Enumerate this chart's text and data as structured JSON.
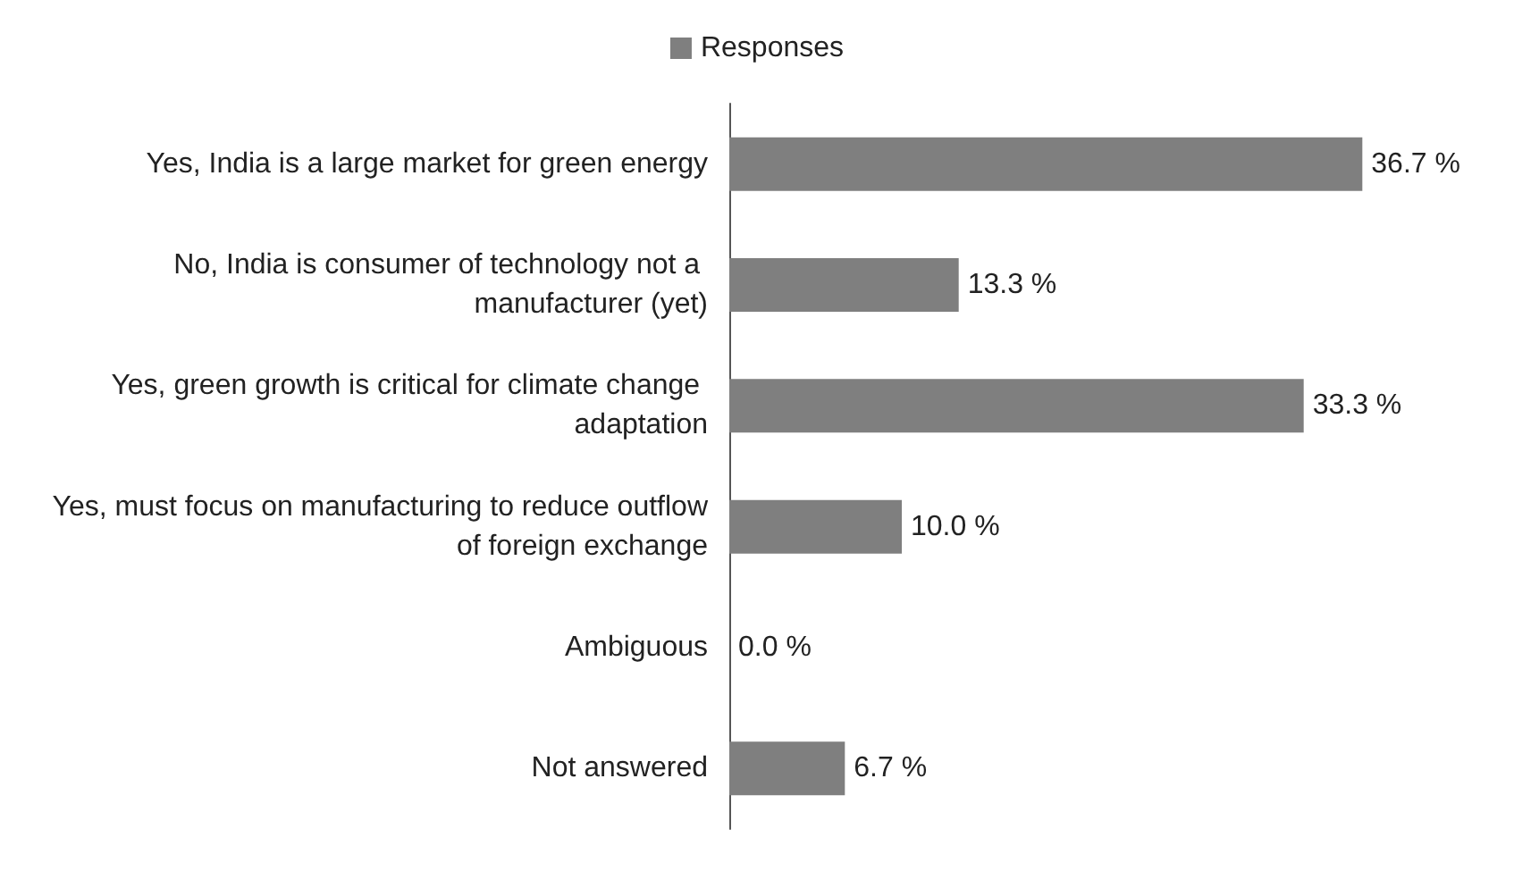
{
  "chart_data": {
    "type": "bar",
    "orientation": "horizontal",
    "legend": "top",
    "categories": [
      "Yes, India is a large market for green energy",
      "No, India is consumer of technology not a manufacturer (yet)",
      "Yes, green growth is critical for climate change adaptation",
      "Yes, must focus on manufacturing to reduce outflow of foreign exchange",
      "Ambiguous",
      "Not answered"
    ],
    "series": [
      {
        "name": "Responses",
        "color": "#7f7f7f",
        "values": [
          36.7,
          13.3,
          33.3,
          10.0,
          0.0,
          6.7
        ],
        "value_labels": [
          "36.7 %",
          "13.3 %",
          "33.3 %",
          "10.0 %",
          "0.0 %",
          "6.7 %"
        ]
      }
    ]
  }
}
